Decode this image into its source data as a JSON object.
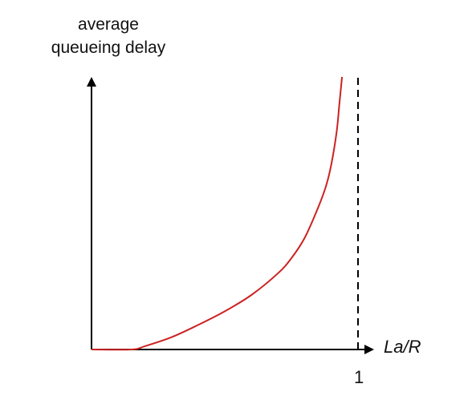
{
  "chart_data": {
    "type": "line",
    "title": "",
    "xlabel": "La/R",
    "ylabel": [
      "average",
      "queueing delay"
    ],
    "xticks": [
      "1"
    ],
    "xlim": [
      0,
      1.07
    ],
    "ylim": [
      0,
      1
    ],
    "grid": false,
    "legend": "none",
    "asymptote": {
      "x": 1,
      "style": "dashed"
    },
    "series": [
      {
        "color": "#cc2222",
        "x": [
          0.0,
          0.15,
          0.2,
          0.3,
          0.4,
          0.5,
          0.6,
          0.7,
          0.75,
          0.8,
          0.85,
          0.88,
          0.9,
          0.92,
          0.93,
          0.94
        ],
        "y": [
          0.0,
          0.0,
          0.012,
          0.045,
          0.09,
          0.14,
          0.2,
          0.28,
          0.335,
          0.41,
          0.52,
          0.6,
          0.68,
          0.8,
          0.9,
          1.0
        ]
      }
    ]
  }
}
